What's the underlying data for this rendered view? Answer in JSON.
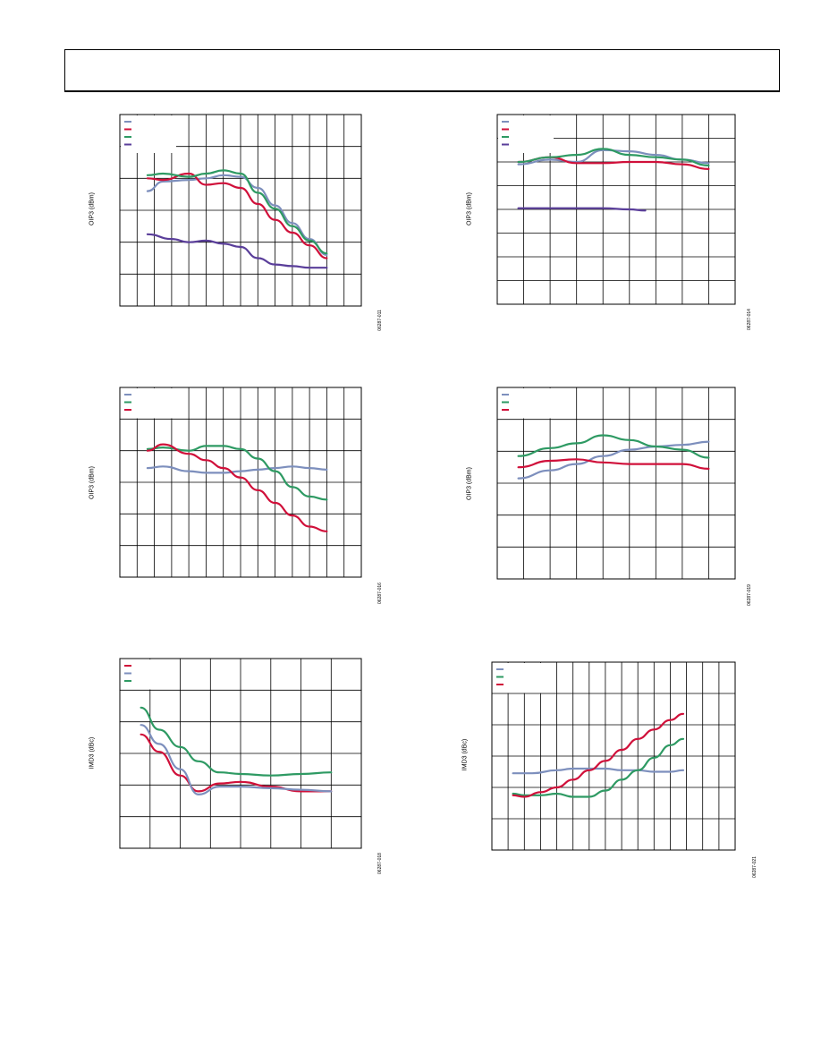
{
  "colors": {
    "purple": "#5a3e9a",
    "red": "#d0103a",
    "blue": "#7d8fbd",
    "green": "#2e9a63"
  },
  "chart_data": [
    {
      "type": "line",
      "id": "c1",
      "ylabel": "OIP3 (dBm)",
      "fig_id": "06287-011",
      "x_divisions": 14,
      "y_divisions": 6,
      "xlim": [
        0,
        14
      ],
      "ylim": [
        0,
        6
      ],
      "legend_placement": "top-left",
      "series": [
        {
          "color": "blue",
          "points": [
            [
              1.6,
              3.6
            ],
            [
              2.5,
              3.9
            ],
            [
              4,
              3.95
            ],
            [
              5,
              4.0
            ],
            [
              6,
              4.1
            ],
            [
              7,
              4.05
            ],
            [
              8,
              3.7
            ],
            [
              9,
              3.15
            ],
            [
              10,
              2.6
            ],
            [
              11,
              2.1
            ],
            [
              12,
              1.6
            ]
          ]
        },
        {
          "color": "red",
          "points": [
            [
              1.6,
              4.0
            ],
            [
              2.5,
              3.95
            ],
            [
              4,
              4.15
            ],
            [
              5,
              3.8
            ],
            [
              6,
              3.85
            ],
            [
              7,
              3.7
            ],
            [
              8,
              3.2
            ],
            [
              9,
              2.7
            ],
            [
              10,
              2.3
            ],
            [
              11,
              1.9
            ],
            [
              12,
              1.5
            ]
          ]
        },
        {
          "color": "green",
          "points": [
            [
              1.6,
              4.1
            ],
            [
              2.5,
              4.15
            ],
            [
              4,
              4.05
            ],
            [
              5,
              4.15
            ],
            [
              6,
              4.25
            ],
            [
              7,
              4.15
            ],
            [
              8,
              3.55
            ],
            [
              9,
              3.05
            ],
            [
              10,
              2.5
            ],
            [
              11,
              2.05
            ],
            [
              12,
              1.65
            ]
          ]
        },
        {
          "color": "purple",
          "points": [
            [
              1.6,
              2.25
            ],
            [
              3,
              2.1
            ],
            [
              4,
              2.0
            ],
            [
              5,
              2.05
            ],
            [
              6,
              1.95
            ],
            [
              7,
              1.85
            ],
            [
              8,
              1.5
            ],
            [
              9,
              1.3
            ],
            [
              10,
              1.25
            ],
            [
              11,
              1.2
            ],
            [
              12,
              1.2
            ]
          ]
        }
      ]
    },
    {
      "type": "line",
      "id": "c2",
      "ylabel": "OIP3 (dBm)",
      "fig_id": "06287-014",
      "x_divisions": 9,
      "y_divisions": 8,
      "xlim": [
        0,
        9
      ],
      "ylim": [
        0,
        8
      ],
      "legend_placement": "top-left",
      "series": [
        {
          "color": "blue",
          "points": [
            [
              0.8,
              5.9
            ],
            [
              2,
              6.1
            ],
            [
              3,
              6.0
            ],
            [
              4,
              6.5
            ],
            [
              5,
              6.45
            ],
            [
              6,
              6.3
            ],
            [
              7,
              6.1
            ],
            [
              8,
              5.95
            ]
          ]
        },
        {
          "color": "red",
          "points": [
            [
              0.8,
              6.0
            ],
            [
              2,
              6.2
            ],
            [
              3,
              5.95
            ],
            [
              4,
              5.95
            ],
            [
              5,
              6.0
            ],
            [
              6,
              6.0
            ],
            [
              7,
              5.9
            ],
            [
              8,
              5.7
            ]
          ]
        },
        {
          "color": "green",
          "points": [
            [
              0.8,
              6.0
            ],
            [
              2,
              6.2
            ],
            [
              3,
              6.3
            ],
            [
              4,
              6.55
            ],
            [
              5,
              6.3
            ],
            [
              6,
              6.2
            ],
            [
              7,
              6.1
            ],
            [
              8,
              5.85
            ]
          ]
        },
        {
          "color": "purple",
          "points": [
            [
              0.8,
              4.05
            ],
            [
              2,
              4.05
            ],
            [
              3,
              4.05
            ],
            [
              4,
              4.05
            ],
            [
              5,
              4.0
            ],
            [
              5.6,
              3.95
            ]
          ]
        }
      ]
    },
    {
      "type": "line",
      "id": "c3",
      "ylabel": "OIP3 (dBm)",
      "fig_id": "06287-016",
      "x_divisions": 14,
      "y_divisions": 6,
      "xlim": [
        0,
        14
      ],
      "ylim": [
        0,
        6
      ],
      "legend_placement": "top-left",
      "series": [
        {
          "color": "blue",
          "points": [
            [
              1.6,
              3.45
            ],
            [
              2.5,
              3.5
            ],
            [
              4,
              3.35
            ],
            [
              5,
              3.3
            ],
            [
              6,
              3.3
            ],
            [
              7,
              3.35
            ],
            [
              8,
              3.4
            ],
            [
              9,
              3.45
            ],
            [
              10,
              3.5
            ],
            [
              11,
              3.45
            ],
            [
              12,
              3.4
            ]
          ]
        },
        {
          "color": "green",
          "points": [
            [
              1.6,
              4.05
            ],
            [
              2.5,
              4.1
            ],
            [
              4,
              4.0
            ],
            [
              5,
              4.15
            ],
            [
              6,
              4.15
            ],
            [
              7,
              4.05
            ],
            [
              8,
              3.75
            ],
            [
              9,
              3.35
            ],
            [
              10,
              2.85
            ],
            [
              11,
              2.55
            ],
            [
              12,
              2.45
            ]
          ]
        },
        {
          "color": "red",
          "points": [
            [
              1.6,
              4.0
            ],
            [
              2.5,
              4.2
            ],
            [
              4,
              3.9
            ],
            [
              5,
              3.7
            ],
            [
              6,
              3.45
            ],
            [
              7,
              3.15
            ],
            [
              8,
              2.75
            ],
            [
              9,
              2.35
            ],
            [
              10,
              1.95
            ],
            [
              11,
              1.6
            ],
            [
              12,
              1.45
            ]
          ]
        }
      ]
    },
    {
      "type": "line",
      "id": "c4",
      "ylabel": "OIP3 (dBm)",
      "fig_id": "06287-019",
      "x_divisions": 9,
      "y_divisions": 6,
      "xlim": [
        0,
        9
      ],
      "ylim": [
        0,
        6
      ],
      "legend_placement": "top-left",
      "series": [
        {
          "color": "blue",
          "points": [
            [
              0.8,
              3.15
            ],
            [
              2,
              3.4
            ],
            [
              3,
              3.6
            ],
            [
              4,
              3.85
            ],
            [
              5,
              4.05
            ],
            [
              6,
              4.15
            ],
            [
              7,
              4.2
            ],
            [
              8,
              4.3
            ]
          ]
        },
        {
          "color": "green",
          "points": [
            [
              0.8,
              3.85
            ],
            [
              2,
              4.1
            ],
            [
              3,
              4.25
            ],
            [
              4,
              4.5
            ],
            [
              5,
              4.35
            ],
            [
              6,
              4.15
            ],
            [
              7,
              4.05
            ],
            [
              8,
              3.8
            ]
          ]
        },
        {
          "color": "red",
          "points": [
            [
              0.8,
              3.5
            ],
            [
              2,
              3.7
            ],
            [
              3,
              3.75
            ],
            [
              4,
              3.65
            ],
            [
              5,
              3.6
            ],
            [
              6,
              3.6
            ],
            [
              7,
              3.6
            ],
            [
              8,
              3.45
            ]
          ]
        }
      ]
    },
    {
      "type": "line",
      "id": "c5",
      "ylabel": "IMD3 (dBc)",
      "fig_id": "06287-018",
      "x_divisions": 8,
      "y_divisions": 6,
      "xlim": [
        0,
        8
      ],
      "ylim": [
        0,
        6
      ],
      "legend_placement": "top-left",
      "series": [
        {
          "color": "red",
          "points": [
            [
              0.7,
              3.6
            ],
            [
              1.3,
              3.05
            ],
            [
              2,
              2.3
            ],
            [
              2.6,
              1.8
            ],
            [
              3.3,
              2.05
            ],
            [
              4,
              2.1
            ],
            [
              5,
              1.95
            ],
            [
              6,
              1.8
            ],
            [
              7,
              1.8
            ]
          ]
        },
        {
          "color": "blue",
          "points": [
            [
              0.7,
              3.9
            ],
            [
              1.3,
              3.3
            ],
            [
              2,
              2.5
            ],
            [
              2.6,
              1.7
            ],
            [
              3.3,
              1.95
            ],
            [
              4,
              1.95
            ],
            [
              5,
              1.9
            ],
            [
              6,
              1.85
            ],
            [
              7,
              1.8
            ]
          ]
        },
        {
          "color": "green",
          "points": [
            [
              0.7,
              4.45
            ],
            [
              1.3,
              3.75
            ],
            [
              2,
              3.2
            ],
            [
              2.6,
              2.75
            ],
            [
              3.3,
              2.4
            ],
            [
              4,
              2.35
            ],
            [
              5,
              2.3
            ],
            [
              6,
              2.35
            ],
            [
              7,
              2.4
            ]
          ]
        }
      ]
    },
    {
      "type": "line",
      "id": "c6",
      "ylabel": "IMD3 (dBc)",
      "fig_id": "06287-021",
      "x_divisions": 15,
      "y_divisions": 6,
      "xlim": [
        0,
        15
      ],
      "ylim": [
        0,
        6
      ],
      "legend_placement": "top-left",
      "series": [
        {
          "color": "blue",
          "points": [
            [
              1.3,
              2.45
            ],
            [
              2.5,
              2.45
            ],
            [
              4,
              2.55
            ],
            [
              5,
              2.6
            ],
            [
              6,
              2.6
            ],
            [
              7,
              2.6
            ],
            [
              8,
              2.55
            ],
            [
              9,
              2.55
            ],
            [
              10,
              2.5
            ],
            [
              11,
              2.5
            ],
            [
              11.8,
              2.55
            ]
          ]
        },
        {
          "color": "green",
          "points": [
            [
              1.3,
              1.8
            ],
            [
              2,
              1.75
            ],
            [
              3,
              1.75
            ],
            [
              4,
              1.8
            ],
            [
              5,
              1.7
            ],
            [
              6,
              1.7
            ],
            [
              7,
              1.9
            ],
            [
              8,
              2.25
            ],
            [
              9,
              2.55
            ],
            [
              10,
              2.95
            ],
            [
              11,
              3.35
            ],
            [
              11.8,
              3.55
            ]
          ]
        },
        {
          "color": "red",
          "points": [
            [
              1.3,
              1.75
            ],
            [
              2,
              1.7
            ],
            [
              3,
              1.85
            ],
            [
              4,
              2.0
            ],
            [
              5,
              2.25
            ],
            [
              6,
              2.55
            ],
            [
              7,
              2.85
            ],
            [
              8,
              3.2
            ],
            [
              9,
              3.55
            ],
            [
              10,
              3.85
            ],
            [
              11,
              4.15
            ],
            [
              11.8,
              4.35
            ]
          ]
        }
      ]
    }
  ]
}
